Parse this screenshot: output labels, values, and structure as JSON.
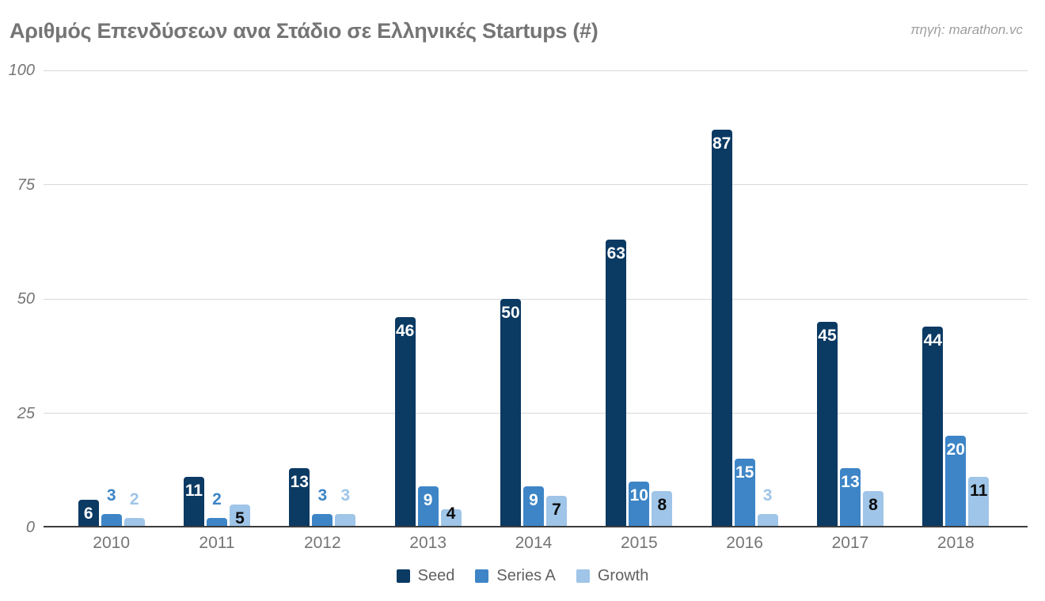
{
  "header": {
    "title": "Αριθμός Επενδύσεων ανα Στάδιο σε Ελληνικές Startups (#)",
    "source": "πηγή: marathon.vc"
  },
  "chart_data": {
    "type": "bar",
    "title": "Αριθμός Επενδύσεων ανα Στάδιο σε Ελληνικές Startups (#)",
    "source": "πηγή: marathon.vc",
    "categories": [
      "2010",
      "2011",
      "2012",
      "2013",
      "2014",
      "2015",
      "2016",
      "2017",
      "2018"
    ],
    "series": [
      {
        "name": "Seed",
        "color": "#0b3a63",
        "inside_label_color": "#ffffff",
        "values": [
          6,
          11,
          13,
          46,
          50,
          63,
          87,
          45,
          44
        ]
      },
      {
        "name": "Series A",
        "color": "#3d85c6",
        "inside_label_color": "#ffffff",
        "values": [
          3,
          2,
          3,
          9,
          9,
          10,
          15,
          13,
          20
        ]
      },
      {
        "name": "Growth",
        "color": "#9fc5e8",
        "inside_label_color": "#0d0d0d",
        "values": [
          2,
          5,
          3,
          4,
          7,
          8,
          3,
          8,
          11
        ]
      }
    ],
    "xlabel": "",
    "ylabel": "",
    "ylim": [
      0,
      100
    ],
    "yticks": [
      0,
      25,
      50,
      75,
      100
    ],
    "grid": true,
    "legend_position": "bottom",
    "value_labels": true
  },
  "colors": {
    "background": "#ffffff",
    "title_text": "#757575",
    "source_text": "#9e9e9e",
    "axis_text": "#757575",
    "legend_text": "#616161",
    "gridline": "#d9d9d9",
    "baseline": "#3c3c3c"
  }
}
